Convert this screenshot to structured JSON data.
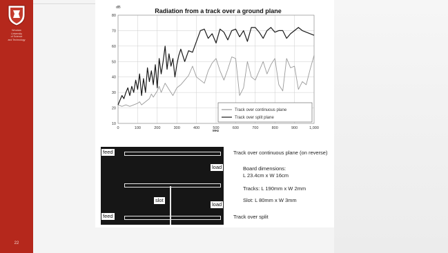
{
  "sidebar": {
    "institution": "Wroclaw\nUniversity\nof Science\nand Technology",
    "page_number": "22"
  },
  "chart_data": {
    "type": "line",
    "title": "Radiation from a track over a ground plane",
    "ylabel": "dB",
    "xlabel": "MHz",
    "xlim": [
      0,
      1000
    ],
    "ylim": [
      10,
      80
    ],
    "xticks": [
      0,
      100,
      200,
      300,
      400,
      500,
      600,
      700,
      800,
      900,
      1000
    ],
    "xtick_labels": [
      "0",
      "100",
      "200",
      "300",
      "400",
      "500",
      "600",
      "700",
      "800",
      "900",
      "1,000"
    ],
    "yticks": [
      10,
      20,
      30,
      40,
      50,
      60,
      70,
      80
    ],
    "grid": true,
    "legend_position": "bottom-right",
    "series": [
      {
        "name": "Track over continuous plane",
        "color": "#9a9a9a",
        "x": [
          0,
          20,
          40,
          60,
          80,
          100,
          110,
          120,
          140,
          160,
          170,
          180,
          200,
          210,
          220,
          240,
          260,
          280,
          300,
          320,
          340,
          360,
          380,
          400,
          420,
          440,
          460,
          480,
          500,
          520,
          540,
          560,
          580,
          600,
          620,
          640,
          660,
          680,
          700,
          720,
          740,
          760,
          780,
          800,
          820,
          840,
          860,
          880,
          900,
          920,
          940,
          960,
          980,
          1000
        ],
        "y": [
          22,
          21,
          22,
          21,
          22,
          23,
          24,
          22,
          24,
          26,
          29,
          27,
          31,
          34,
          30,
          36,
          32,
          28,
          33,
          35,
          38,
          41,
          47,
          40,
          38,
          36,
          44,
          49,
          52,
          44,
          38,
          45,
          53,
          52,
          28,
          33,
          50,
          40,
          38,
          44,
          50,
          42,
          48,
          52,
          35,
          31,
          52,
          46,
          47,
          32,
          37,
          35,
          45,
          54
        ]
      },
      {
        "name": "Track over split plane",
        "color": "#1a1a1a",
        "x": [
          0,
          10,
          20,
          30,
          40,
          50,
          60,
          70,
          80,
          90,
          100,
          110,
          120,
          130,
          140,
          150,
          160,
          170,
          180,
          190,
          200,
          210,
          220,
          230,
          240,
          250,
          260,
          270,
          280,
          290,
          300,
          310,
          320,
          340,
          360,
          380,
          400,
          420,
          440,
          460,
          480,
          500,
          520,
          540,
          560,
          580,
          600,
          620,
          640,
          660,
          680,
          700,
          720,
          740,
          760,
          780,
          800,
          820,
          840,
          860,
          880,
          900,
          920,
          940,
          960,
          980,
          1000
        ],
        "y": [
          22,
          25,
          28,
          26,
          30,
          33,
          28,
          34,
          30,
          38,
          32,
          42,
          28,
          39,
          30,
          46,
          37,
          44,
          35,
          48,
          33,
          52,
          42,
          50,
          60,
          45,
          55,
          47,
          52,
          40,
          48,
          54,
          58,
          50,
          57,
          56,
          63,
          70,
          71,
          65,
          68,
          62,
          71,
          69,
          64,
          70,
          71,
          66,
          70,
          63,
          72,
          72,
          69,
          65,
          70,
          72,
          69,
          70,
          70,
          65,
          68,
          70,
          72,
          70,
          69,
          68,
          67
        ]
      }
    ]
  },
  "diagram": {
    "feed_label": "feed",
    "load_label": "load",
    "slot_label": "slot",
    "caption_top": "Track over continuous plane (on reverse)",
    "caption_bottom": "Track over split",
    "board_dims_label": "Board dimensions:",
    "board_dims_value": "L 23.4cm x W 16cm",
    "tracks_text": "Tracks: L 190mm x W 2mm",
    "slot_text": "Slot: L 80mm x W 3mm"
  }
}
